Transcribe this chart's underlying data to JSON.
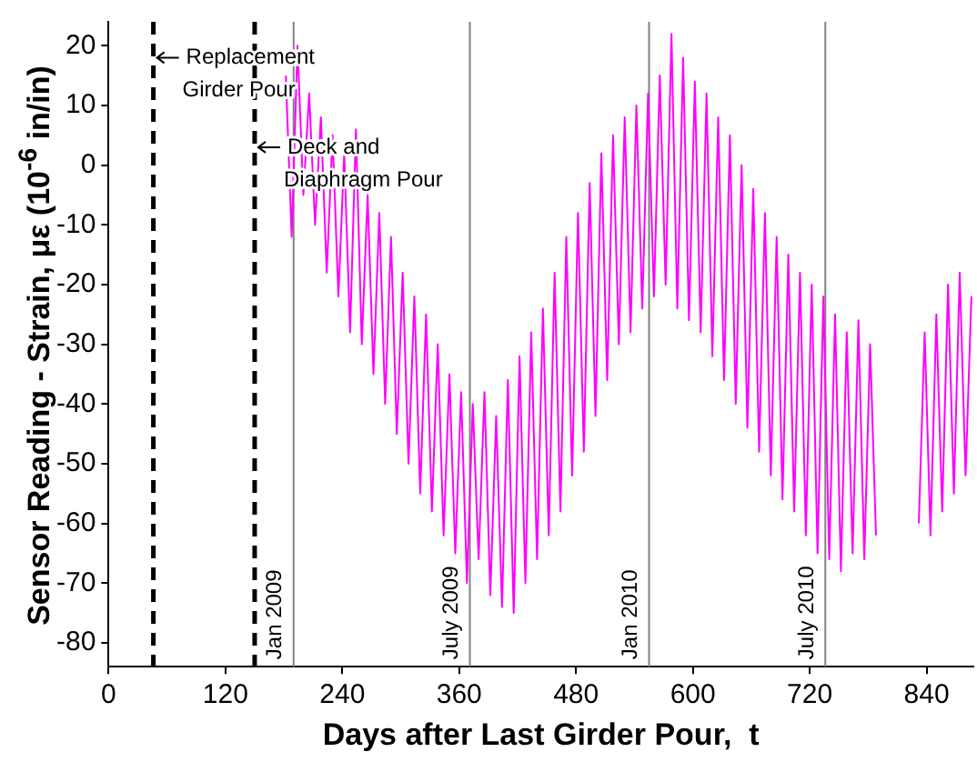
{
  "chart_data": {
    "type": "line",
    "xlabel": "Days after Last Girder Pour,  t",
    "ylabel": "Sensor Reading - Strain,  με (10$^{-6}$ in/in)",
    "xlim": [
      0,
      888
    ],
    "xticks": [
      0,
      120,
      240,
      360,
      480,
      600,
      720,
      840
    ],
    "ylim": [
      -84,
      24
    ],
    "yticks": [
      -80,
      -70,
      -60,
      -50,
      -40,
      -30,
      -20,
      -10,
      0,
      10,
      20
    ],
    "grid": false,
    "legend": false,
    "marker": "none",
    "line_style": "solid",
    "x": [
      182,
      188,
      194,
      200,
      206,
      212,
      218,
      224,
      230,
      236,
      242,
      248,
      254,
      260,
      266,
      272,
      278,
      284,
      290,
      296,
      302,
      308,
      314,
      320,
      326,
      332,
      338,
      344,
      350,
      356,
      362,
      368,
      374,
      380,
      386,
      392,
      398,
      404,
      410,
      416,
      422,
      428,
      434,
      440,
      446,
      452,
      458,
      464,
      470,
      476,
      482,
      488,
      494,
      500,
      506,
      512,
      518,
      524,
      530,
      536,
      542,
      548,
      554,
      560,
      566,
      572,
      578,
      584,
      590,
      596,
      602,
      608,
      614,
      620,
      626,
      632,
      638,
      644,
      650,
      656,
      662,
      668,
      674,
      680,
      686,
      692,
      698,
      704,
      710,
      716,
      722,
      728,
      734,
      740,
      746,
      752,
      758,
      764,
      770,
      776,
      782,
      788,
      810,
      832,
      838,
      844,
      850,
      856,
      862,
      868,
      874,
      880,
      886
    ],
    "series": [
      {
        "color": "#ff00ff",
        "values": [
          15,
          -12,
          20,
          -5,
          12,
          -10,
          8,
          -18,
          5,
          -22,
          2,
          -28,
          6,
          -30,
          -5,
          -35,
          -8,
          -40,
          -12,
          -45,
          -18,
          -50,
          -22,
          -55,
          -25,
          -58,
          -30,
          -62,
          -35,
          -65,
          -38,
          -70,
          -40,
          -66,
          -38,
          -72,
          -42,
          -74,
          -36,
          -75,
          -32,
          -70,
          -28,
          -66,
          -24,
          -62,
          -18,
          -58,
          -12,
          -52,
          -8,
          -48,
          -3,
          -42,
          2,
          -36,
          5,
          -30,
          8,
          -28,
          10,
          -24,
          12,
          -22,
          15,
          -20,
          22,
          -24,
          18,
          -26,
          14,
          -28,
          12,
          -32,
          8,
          -36,
          5,
          -40,
          0,
          -44,
          -4,
          -48,
          -8,
          -52,
          -12,
          -56,
          -15,
          -58,
          -18,
          -62,
          -20,
          -65,
          -22,
          -66,
          -25,
          -68,
          -28,
          -65,
          -26,
          -66,
          -30,
          -62,
          null,
          -60,
          -28,
          -62,
          -25,
          -58,
          -20,
          -55,
          -18,
          -52,
          -22
        ]
      }
    ],
    "ref_lines": [
      {
        "axis": "x",
        "value": 46,
        "color": "#000000",
        "line_style": "dashed"
      },
      {
        "axis": "x",
        "value": 150,
        "color": "#000000",
        "line_style": "dashed"
      },
      {
        "axis": "x",
        "value": 190,
        "label": "Jan 2009",
        "color": "#808080",
        "line_style": "solid"
      },
      {
        "axis": "x",
        "value": 371,
        "label": "July 2009",
        "color": "#808080",
        "line_style": "solid"
      },
      {
        "axis": "x",
        "value": 555,
        "label": "Jan 2010",
        "color": "#808080",
        "line_style": "solid"
      },
      {
        "axis": "x",
        "value": 736,
        "label": "July 2010",
        "color": "#808080",
        "line_style": "solid"
      }
    ],
    "annotations": [
      {
        "text": "Replacement Girder Pour",
        "x": 46,
        "y": 18
      },
      {
        "text": "Deck and Diaphragm Pour",
        "x": 150,
        "y": 3
      }
    ]
  }
}
